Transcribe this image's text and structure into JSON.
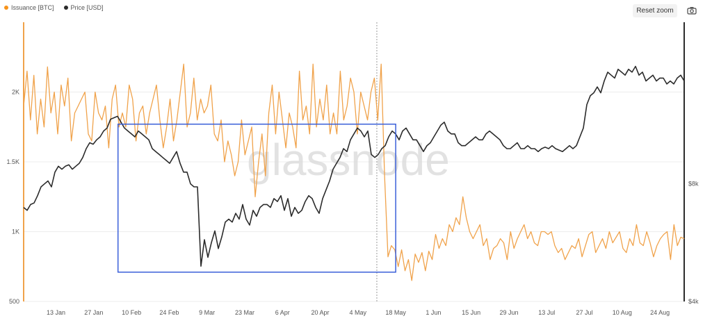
{
  "legend": [
    {
      "label": "Issuance [BTC]",
      "color": "#f7931a"
    },
    {
      "label": "Price [USD]",
      "color": "#2b2b2b"
    }
  ],
  "toolbar": {
    "reset_zoom_label": "Reset zoom",
    "camera_icon": "camera-icon"
  },
  "watermark": "glassnode",
  "colors": {
    "issuance": "#f0a24a",
    "price": "#2b2b2b",
    "highlight_box": "#3a5fd9",
    "grid": "#ececec"
  },
  "chart_data": {
    "type": "line",
    "x_start": "2020-01-01",
    "x_end": "2020-09-02",
    "x_ticks": [
      "13 Jan",
      "27 Jan",
      "10 Feb",
      "24 Feb",
      "9 Mar",
      "23 Mar",
      "6 Apr",
      "20 Apr",
      "4 May",
      "18 May",
      "1 Jun",
      "15 Jun",
      "29 Jun",
      "13 Jul",
      "27 Jul",
      "10 Aug",
      "24 Aug"
    ],
    "y_left_ticks": [
      "500",
      "1K",
      "1.5K",
      "2K"
    ],
    "y_left_range": [
      500,
      2500
    ],
    "y_right_ticks": [
      "$4k",
      "$8k"
    ],
    "y_right_range": [
      4000,
      13500
    ],
    "halving_date": "2020-05-11",
    "highlight_range": {
      "x_start": "2020-02-05",
      "x_end": "2020-05-18",
      "y_left_low": 710,
      "y_left_high": 1770
    },
    "series": [
      {
        "name": "Issuance [BTC]",
        "axis": "left",
        "values": [
          1900,
          2150,
          1800,
          2120,
          1700,
          1950,
          1750,
          2180,
          1850,
          2000,
          1700,
          2050,
          1900,
          2100,
          1650,
          1850,
          1900,
          1950,
          2000,
          1700,
          1650,
          2000,
          1850,
          1800,
          1900,
          1600,
          1950,
          2050,
          1750,
          1850,
          1750,
          2050,
          1950,
          1650,
          1850,
          1900,
          1700,
          1850,
          1950,
          2050,
          1800,
          1600,
          1750,
          1950,
          1650,
          1800,
          2000,
          2200,
          1750,
          1850,
          2100,
          1800,
          1950,
          1850,
          1900,
          2050,
          1700,
          1650,
          1800,
          1500,
          1650,
          1550,
          1400,
          1500,
          1800,
          1550,
          1650,
          1750,
          1250,
          1500,
          1700,
          1400,
          1850,
          2050,
          1700,
          2000,
          1800,
          1600,
          1850,
          1750,
          1600,
          2150,
          1800,
          1900,
          1700,
          2200,
          1750,
          1950,
          1800,
          2050,
          1700,
          1850,
          1700,
          2150,
          1800,
          1900,
          2100,
          2000,
          1700,
          2000,
          1900,
          1800,
          2000,
          2100,
          1800,
          2200,
          1400,
          820,
          900,
          870,
          750,
          870,
          720,
          800,
          650,
          840,
          780,
          850,
          720,
          860,
          800,
          980,
          880,
          950,
          900,
          1050,
          1000,
          1100,
          1050,
          1250,
          1100,
          1000,
          950,
          1000,
          1050,
          900,
          950,
          800,
          880,
          900,
          950,
          920,
          800,
          1000,
          880,
          950,
          1000,
          1050,
          950,
          1000,
          920,
          900,
          1000,
          1000,
          980,
          1000,
          900,
          850,
          880,
          800,
          850,
          900,
          880,
          950,
          820,
          900,
          980,
          1000,
          850,
          900,
          950,
          880,
          1000,
          920,
          960,
          1000,
          880,
          850,
          950,
          900,
          1050,
          920,
          900,
          1000,
          920,
          820,
          900,
          950,
          980,
          1000,
          800,
          1050,
          900,
          960,
          950
        ]
      },
      {
        "name": "Price [USD]",
        "axis": "right",
        "values": [
          7200,
          7100,
          7300,
          7350,
          7600,
          7900,
          8000,
          8100,
          7900,
          8400,
          8600,
          8500,
          8600,
          8650,
          8500,
          8600,
          8700,
          8900,
          9200,
          9400,
          9350,
          9500,
          9600,
          9800,
          9900,
          10200,
          10250,
          10300,
          10100,
          9900,
          9800,
          9700,
          9600,
          9800,
          9700,
          9600,
          9500,
          9200,
          9100,
          9000,
          8900,
          8800,
          8700,
          8900,
          9100,
          8700,
          8400,
          8400,
          8000,
          7900,
          7900,
          5200,
          6100,
          5500,
          6000,
          6400,
          5800,
          6200,
          6700,
          6800,
          6700,
          7000,
          6800,
          7300,
          6800,
          6600,
          7100,
          6900,
          7200,
          7300,
          7300,
          7200,
          7500,
          7400,
          7600,
          7100,
          7500,
          6900,
          7200,
          7000,
          7100,
          7400,
          7600,
          7500,
          7200,
          7000,
          7500,
          7800,
          8100,
          8500,
          8700,
          8900,
          9200,
          9100,
          9500,
          9700,
          9900,
          9800,
          9600,
          9800,
          9000,
          8900,
          9000,
          9200,
          9300,
          9600,
          9800,
          9700,
          9500,
          9800,
          9900,
          9700,
          9500,
          9500,
          9300,
          9100,
          9300,
          9400,
          9600,
          9800,
          10000,
          10100,
          9800,
          9700,
          9700,
          9400,
          9300,
          9300,
          9400,
          9500,
          9600,
          9500,
          9500,
          9700,
          9800,
          9700,
          9600,
          9500,
          9300,
          9200,
          9200,
          9300,
          9400,
          9200,
          9200,
          9300,
          9200,
          9200,
          9100,
          9200,
          9250,
          9200,
          9300,
          9200,
          9150,
          9100,
          9200,
          9300,
          9200,
          9300,
          9600,
          9900,
          10700,
          11000,
          11100,
          11300,
          11100,
          11500,
          11800,
          11700,
          11600,
          11900,
          11800,
          11700,
          11900,
          11800,
          12000,
          11700,
          11800,
          11500,
          11600,
          11700,
          11500,
          11600,
          11600,
          11400,
          11500,
          11400,
          11600,
          11700,
          11500
        ]
      }
    ],
    "title": "",
    "xlabel": "",
    "ylabel": "",
    "grid": true,
    "legend_position": "top-left"
  }
}
